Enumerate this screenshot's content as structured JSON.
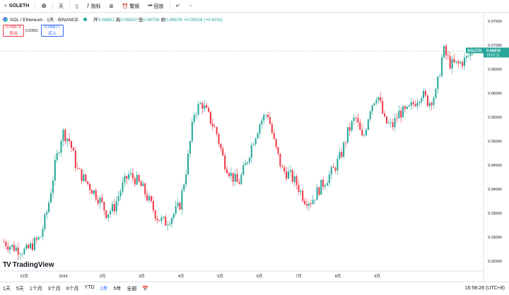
{
  "toolbar": {
    "symbol": "SOLETH",
    "add_icon": "plus-circle-icon",
    "interval": "天",
    "indicators_label": "指标",
    "alerts_label": "警报",
    "replay_label": "回放"
  },
  "legend": {
    "title": "SOL / Ethereum · 1天 · BINANCE",
    "open_label": "开",
    "open": "0.06851",
    "high_label": "高",
    "high": "0.06910",
    "low_label": "低",
    "low": "0.06756",
    "close_label": "收",
    "close": "0.06878",
    "change": "+0.00028 (+0.41%)"
  },
  "trade": {
    "sell_price": "0.06876",
    "sell_label": "卖出",
    "spread": "0.00001",
    "buy_price": "0.06877",
    "buy_label": "买入"
  },
  "price_tag": {
    "symbol": "SOLETH",
    "price": "0.06878",
    "countdown": "15:01:11"
  },
  "branding": {
    "name": "TradingView"
  },
  "bottom_bar": {
    "ranges": [
      "1天",
      "5天",
      "1个月",
      "3个月",
      "6个月",
      "YTD",
      "1年",
      "5年",
      "全部"
    ],
    "active_range": "1年",
    "clock": "16:58:28 (UTC+8)"
  },
  "colors": {
    "up": "#26a69a",
    "down": "#f23645",
    "accent": "#2962ff"
  },
  "chart_data": {
    "type": "candlestick",
    "symbol": "SOLETH",
    "ylim": [
      0.0235,
      0.0765
    ],
    "y_ticks": [
      "0.07500",
      "0.07000",
      "0.06500",
      "0.06000",
      "0.05500",
      "0.05000",
      "0.04500",
      "0.04000",
      "0.03500",
      "0.03000",
      "0.02500"
    ],
    "x_ticks": [
      "12月",
      "2024",
      "2月",
      "3月",
      "4月",
      "5月",
      "6月",
      "7月",
      "8月",
      "9月"
    ],
    "last_price": 0.06878,
    "close_path": [
      0.029,
      0.028,
      0.0275,
      0.027,
      0.0285,
      0.03,
      0.036,
      0.045,
      0.052,
      0.05,
      0.044,
      0.042,
      0.04,
      0.038,
      0.035,
      0.036,
      0.04,
      0.043,
      0.042,
      0.04,
      0.037,
      0.034,
      0.033,
      0.0345,
      0.0365,
      0.045,
      0.056,
      0.058,
      0.055,
      0.052,
      0.046,
      0.043,
      0.041,
      0.045,
      0.05,
      0.054,
      0.056,
      0.049,
      0.044,
      0.043,
      0.041,
      0.038,
      0.0375,
      0.04,
      0.042,
      0.044,
      0.047,
      0.052,
      0.055,
      0.05,
      0.057,
      0.06,
      0.054,
      0.053,
      0.056,
      0.056,
      0.058,
      0.06,
      0.058,
      0.06,
      0.069,
      0.066,
      0.066,
      0.067,
      0.0688
    ]
  }
}
